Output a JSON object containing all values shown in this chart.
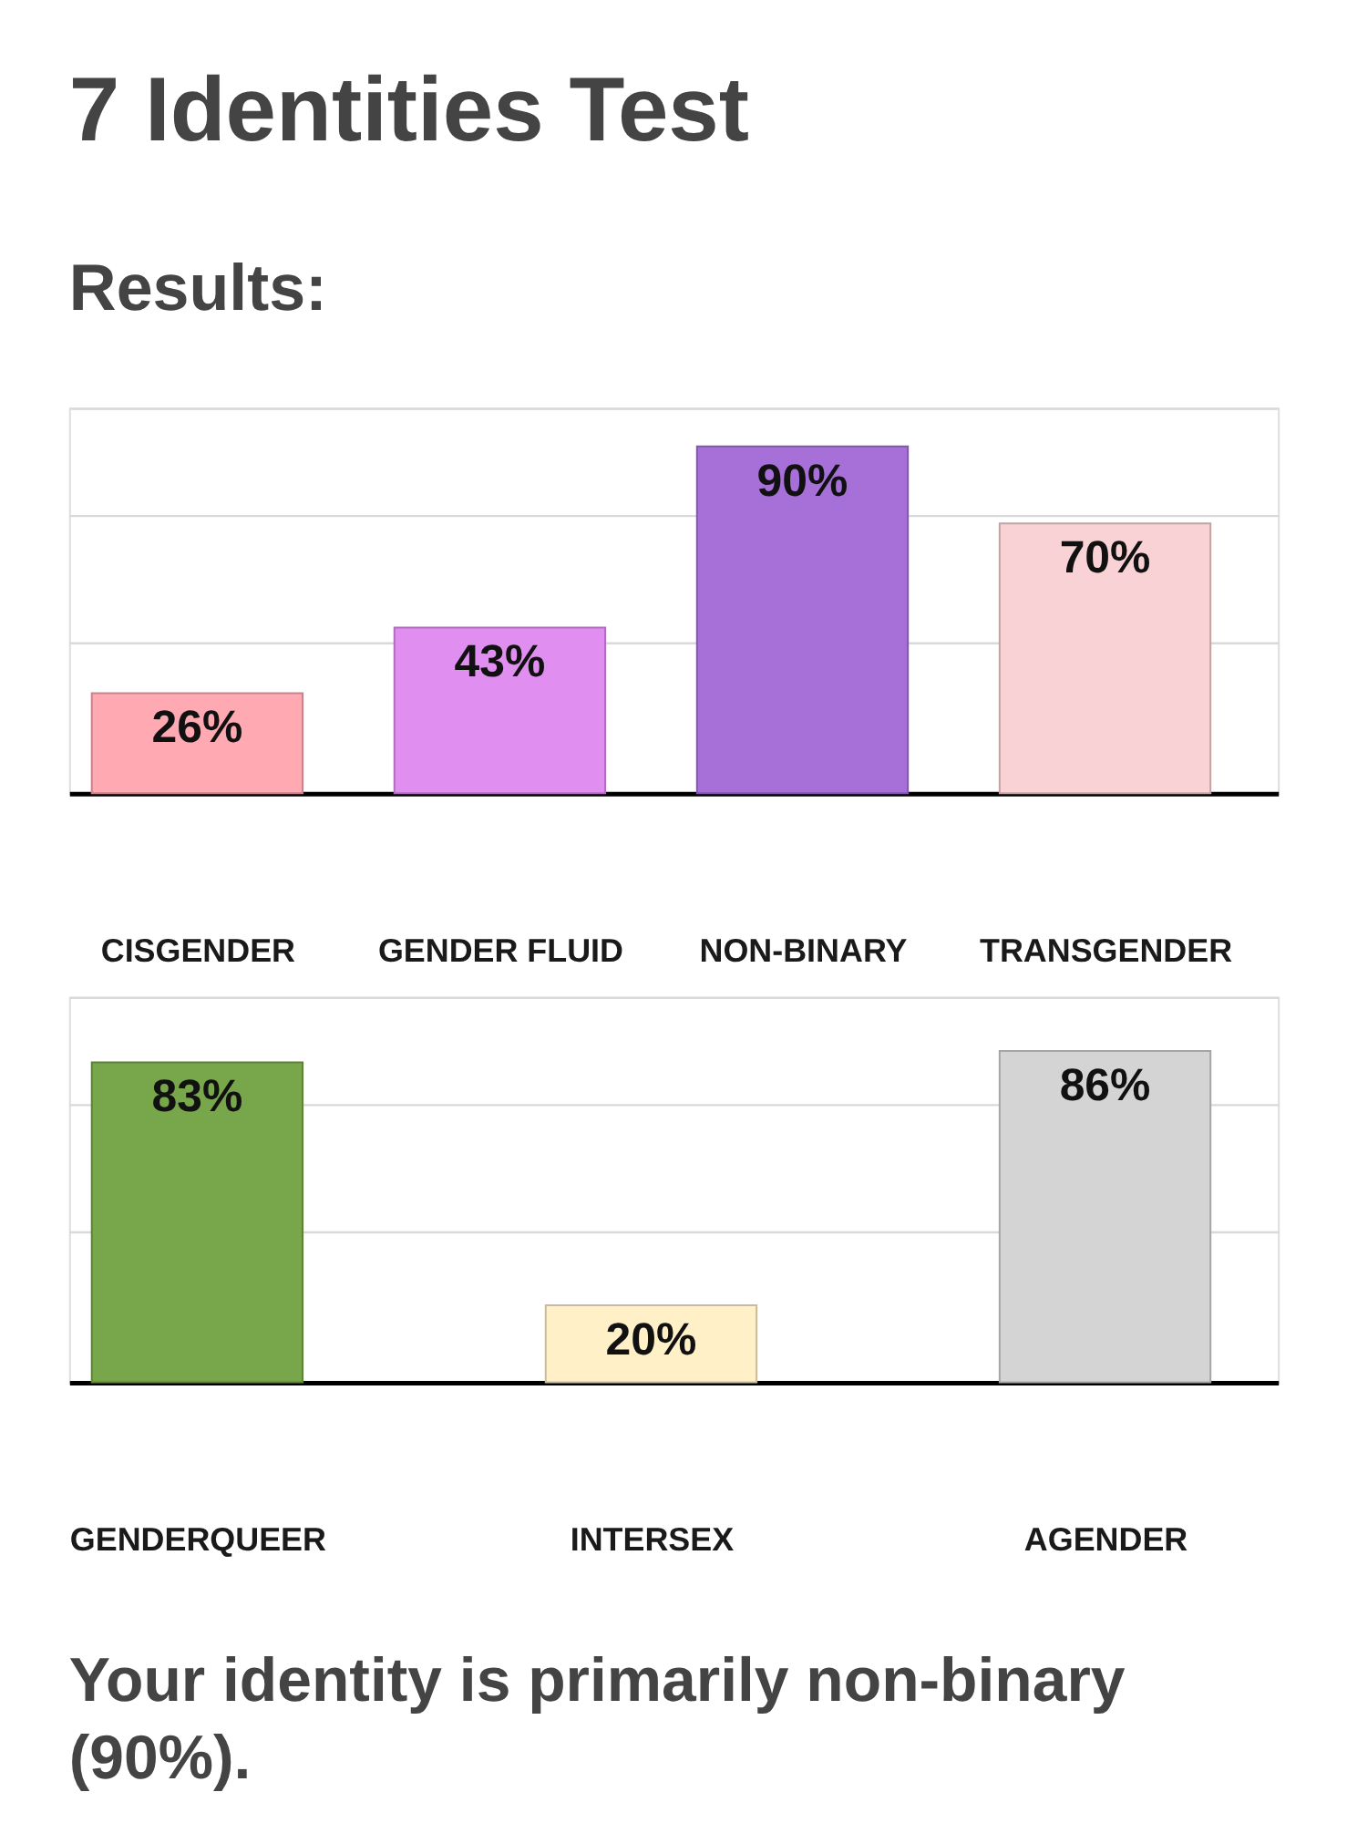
{
  "chart_data": [
    {
      "type": "bar",
      "title": "7 Identities Test",
      "subtitle": "Results:",
      "categories": [
        "CISGENDER",
        "GENDER FLUID",
        "NON-BINARY",
        "TRANSGENDER"
      ],
      "values": [
        26,
        43,
        90,
        70
      ],
      "colors": [
        "#ffa9b3",
        "#e08ef0",
        "#a670d8",
        "#f9d2d6"
      ],
      "value_labels": [
        "26%",
        "43%",
        "90%",
        "70%"
      ],
      "ylim": [
        0,
        100
      ],
      "yticks": [
        {
          "value": 39,
          "label": null
        },
        {
          "value": 72,
          "label": null
        },
        {
          "value": 100,
          "label": null
        }
      ],
      "grid": "y",
      "tick_labels": "x"
    },
    {
      "type": "bar",
      "categories": [
        "GENDERQUEER",
        "INTERSEX",
        "AGENDER"
      ],
      "values": [
        83,
        20,
        86
      ],
      "colors": [
        "#78a64a",
        "#fff0c8",
        "#d4d4d4"
      ],
      "value_labels": [
        "83%",
        "20%",
        "86%"
      ],
      "ylim": [
        0,
        100
      ],
      "yticks": [
        {
          "value": 39,
          "label": null
        },
        {
          "value": 72,
          "label": null
        },
        {
          "value": 100,
          "label": null
        }
      ],
      "grid": "y",
      "tick_labels": "x",
      "annotations": [
        "Your identity is primarily non-binary (90%)."
      ]
    }
  ]
}
